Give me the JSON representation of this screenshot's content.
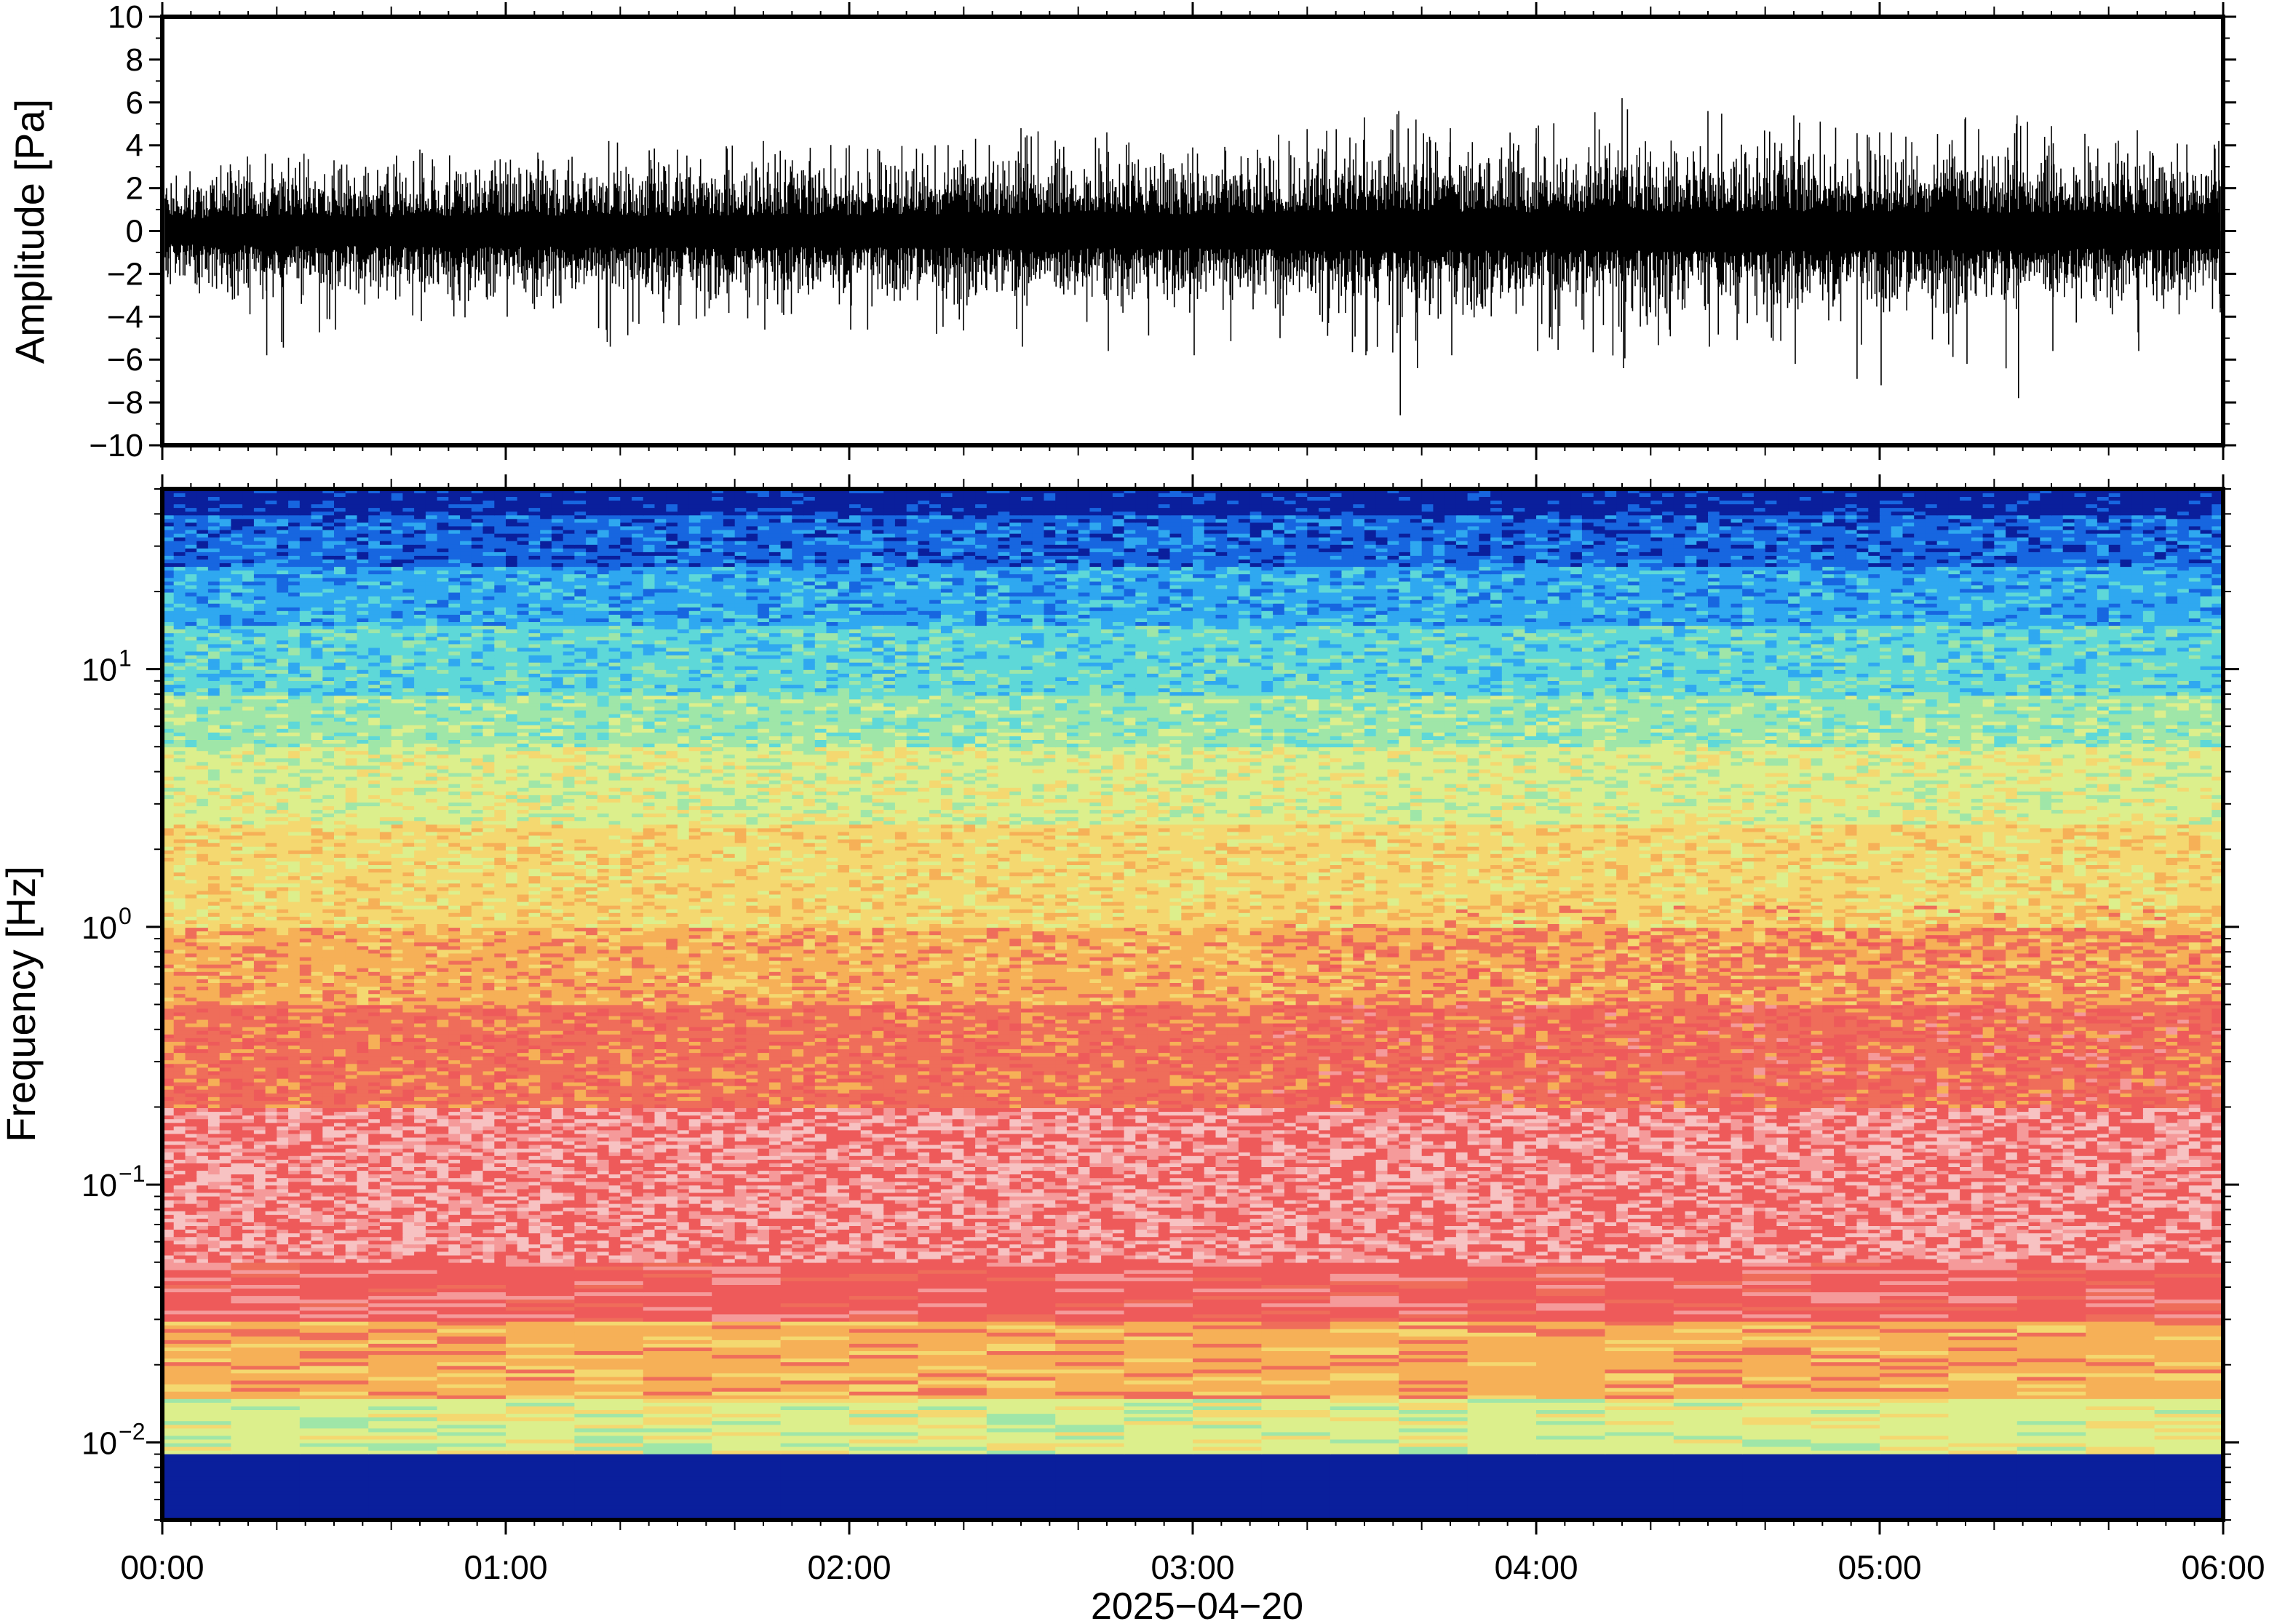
{
  "chart_data": [
    {
      "type": "line",
      "ylabel": "Amplitude [Pa]",
      "xlabel": "",
      "ylim": [
        -10,
        10
      ],
      "yticks": [
        10,
        8,
        6,
        4,
        2,
        0,
        -2,
        -4,
        -6,
        -8,
        -10
      ],
      "ytick_labels": [
        "10",
        "8",
        "6",
        "4",
        "2",
        "0",
        "−2",
        "−4",
        "−6",
        "−8",
        "−10"
      ],
      "xlim": [
        "00:00",
        "06:00"
      ],
      "grid": false,
      "line_color": "#000000",
      "series": [
        {
          "x_hours": [
            0.0,
            0.2,
            0.3,
            0.5,
            0.75,
            1.0,
            1.3,
            1.5,
            1.75,
            2.0,
            2.25,
            2.5,
            2.75,
            3.0,
            3.25,
            3.5,
            3.6,
            3.65,
            3.75,
            4.0,
            4.25,
            4.5,
            4.75,
            5.0,
            5.25,
            5.4,
            5.5,
            5.75,
            6.0
          ],
          "peak_max": [
            2.0,
            2.8,
            3.6,
            3.3,
            3.8,
            3.2,
            4.2,
            3.8,
            4.2,
            4.0,
            4.0,
            4.8,
            4.6,
            3.9,
            4.5,
            5.3,
            5.6,
            5.2,
            4.8,
            4.8,
            6.2,
            5.6,
            5.4,
            4.6,
            5.3,
            5.4,
            4.9,
            4.7,
            4.2
          ],
          "peak_min": [
            -2.0,
            -3.2,
            -5.8,
            -4.6,
            -4.2,
            -4.0,
            -5.4,
            -4.4,
            -4.6,
            -4.6,
            -4.8,
            -5.4,
            -5.6,
            -5.8,
            -5.0,
            -5.8,
            -8.6,
            -6.4,
            -5.8,
            -5.6,
            -6.4,
            -5.4,
            -6.2,
            -7.2,
            -6.2,
            -7.8,
            -5.6,
            -5.6,
            -3.8
          ],
          "typical_envelope": [
            1.6,
            1.8,
            1.9,
            1.9,
            2.0,
            2.0,
            2.0,
            2.0,
            2.1,
            2.1,
            2.2,
            2.3,
            2.3,
            2.2,
            2.3,
            2.6,
            2.8,
            2.6,
            2.5,
            2.5,
            2.6,
            2.6,
            2.6,
            2.5,
            2.5,
            2.4,
            2.4,
            2.3,
            2.2
          ]
        }
      ]
    },
    {
      "type": "heatmap",
      "ylabel": "Frequency [Hz]",
      "xlabel": "2025−04−20",
      "xticks": [
        "00:00",
        "01:00",
        "02:00",
        "03:00",
        "04:00",
        "05:00",
        "06:00"
      ],
      "yscale": "log",
      "ylim": [
        0.005,
        50
      ],
      "yticks": [
        {
          "base": "10",
          "exp": "−2",
          "value": 0.01
        },
        {
          "base": "10",
          "exp": "−1",
          "value": 0.1
        },
        {
          "base": "10",
          "exp": "0",
          "value": 1
        },
        {
          "base": "10",
          "exp": "1",
          "value": 10
        }
      ],
      "colormap": [
        "#0a1f9c",
        "#1766e0",
        "#2fa8f0",
        "#5ed8d8",
        "#9fe6a8",
        "#dcef8c",
        "#f4d870",
        "#f6b057",
        "#ef6d5a",
        "#ee5a5a",
        "#f59a9a",
        "#f7c2c2"
      ],
      "frequency_bands": [
        {
          "hz_low": 40,
          "hz_high": 50,
          "color": "#0a1f9c"
        },
        {
          "hz_low": 25,
          "hz_high": 40,
          "color": "#1766e0"
        },
        {
          "hz_low": 15,
          "hz_high": 25,
          "color": "#2fa8f0"
        },
        {
          "hz_low": 8,
          "hz_high": 15,
          "color": "#5ed8d8"
        },
        {
          "hz_low": 5,
          "hz_high": 8,
          "color": "#9fe6a8"
        },
        {
          "hz_low": 2.5,
          "hz_high": 5,
          "color": "#dcef8c"
        },
        {
          "hz_low": 1,
          "hz_high": 2.5,
          "color": "#f4d870"
        },
        {
          "hz_low": 0.5,
          "hz_high": 1,
          "color": "#f6b057"
        },
        {
          "hz_low": 0.2,
          "hz_high": 0.5,
          "color": "#ef6d5a"
        },
        {
          "hz_low": 0.05,
          "hz_high": 0.2,
          "color": "#f59a9a"
        },
        {
          "hz_low": 0.03,
          "hz_high": 0.05,
          "color": "#ee5a5a"
        },
        {
          "hz_low": 0.015,
          "hz_high": 0.03,
          "color": "#f6b057"
        },
        {
          "hz_low": 0.009,
          "hz_high": 0.015,
          "color": "#dcef8c"
        },
        {
          "hz_low": 0.005,
          "hz_high": 0.009,
          "color": "#8fe3b4"
        }
      ]
    }
  ]
}
